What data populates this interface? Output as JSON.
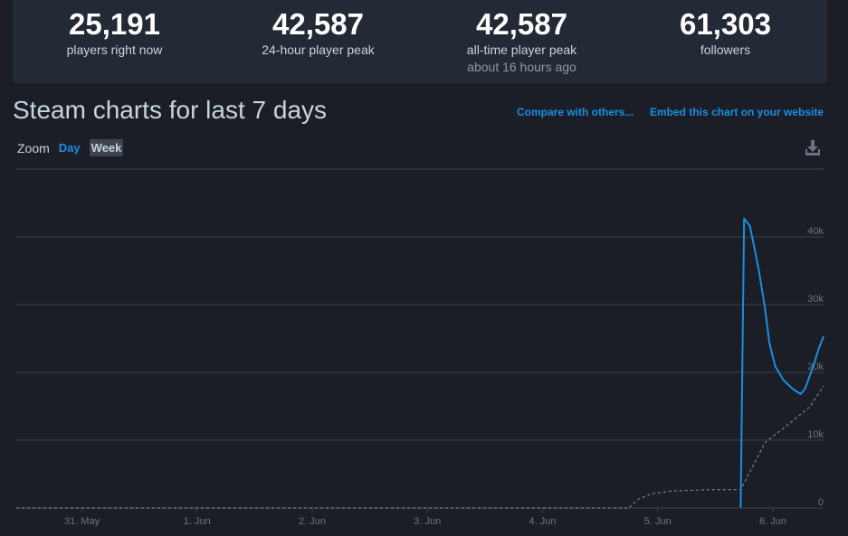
{
  "stats": [
    {
      "value": "25,191",
      "label": "players right now"
    },
    {
      "value": "42,587",
      "label": "24-hour player peak"
    },
    {
      "value": "42,587",
      "label": "all-time player peak",
      "note": "about 16 hours ago"
    },
    {
      "value": "61,303",
      "label": "followers"
    }
  ],
  "header": {
    "title": "Steam charts for last 7 days",
    "links": [
      "Compare with others...",
      "Embed this chart on your website"
    ]
  },
  "zoom": {
    "label": "Zoom",
    "options": [
      "Day",
      "Week"
    ]
  },
  "chart_data": {
    "type": "line",
    "xlim": [
      -0.57,
      6.44
    ],
    "xticks": [
      {
        "value": 0,
        "label": "31. May"
      },
      {
        "value": 1,
        "label": "1. Jun"
      },
      {
        "value": 2,
        "label": "2. Jun"
      },
      {
        "value": 3,
        "label": "3. Jun"
      },
      {
        "value": 4,
        "label": "4. Jun"
      },
      {
        "value": 5,
        "label": "5. Jun"
      },
      {
        "value": 6,
        "label": "6. Jun"
      }
    ],
    "ylim": [
      0,
      50000
    ],
    "yticks": [
      0,
      {
        "value": 10000,
        "label": "10k"
      },
      {
        "value": 20000,
        "label": "20k"
      },
      {
        "value": 30000,
        "label": "30k"
      },
      {
        "value": 40000,
        "label": "40k"
      }
    ],
    "grid": true,
    "series": [
      {
        "color": "#1a8fe0",
        "dashed": false,
        "x": [
          5.72,
          5.75,
          5.8,
          5.84,
          5.88,
          5.93,
          5.97,
          6.02,
          6.09,
          6.17,
          6.24,
          6.28,
          6.35,
          6.4,
          6.44
        ],
        "values": [
          0,
          42700,
          41600,
          38300,
          34900,
          29600,
          24300,
          20900,
          18900,
          17600,
          16800,
          17600,
          20900,
          23600,
          25300
        ]
      },
      {
        "color": "#8f98a0",
        "dashed": true,
        "x": [
          -0.57,
          4.75,
          4.83,
          4.95,
          5.11,
          5.42,
          5.72,
          5.93,
          6.13,
          6.32,
          6.44
        ],
        "values": [
          0,
          0,
          1300,
          2100,
          2500,
          2700,
          2700,
          9600,
          12300,
          14900,
          18000
        ]
      }
    ]
  }
}
